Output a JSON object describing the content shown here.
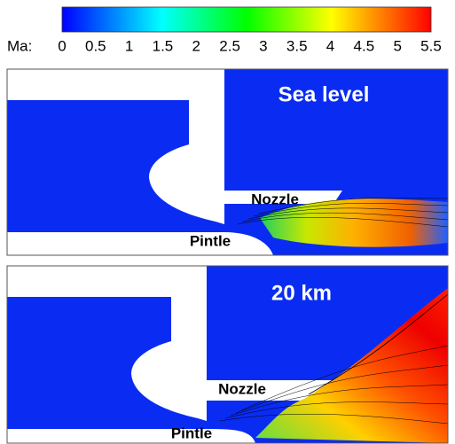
{
  "colorbar": {
    "label": "Ma:",
    "range": [
      0,
      5.5
    ],
    "ticks": [
      0,
      0.5,
      1,
      1.5,
      2,
      2.5,
      3,
      3.5,
      4,
      4.5,
      5,
      5.5
    ]
  },
  "panels": [
    {
      "title": "Sea level",
      "nozzle": "Nozzle",
      "pintle": "Pintle"
    },
    {
      "title": "20 km",
      "nozzle": "Nozzle",
      "pintle": "Pintle"
    }
  ]
}
